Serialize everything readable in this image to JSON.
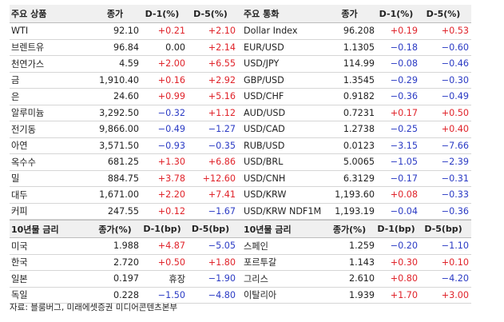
{
  "colors": {
    "up": "#e0242b",
    "down": "#2b3bc4",
    "neutral": "#222222"
  },
  "commodities": {
    "headers": [
      "주요 상품",
      "종가",
      "D-1(%)",
      "D-5(%)"
    ],
    "rows": [
      {
        "name": "WTI",
        "close": "92.10",
        "d1": "+0.21",
        "d1_dir": "pos",
        "d5": "+2.10",
        "d5_dir": "pos"
      },
      {
        "name": "브렌트유",
        "close": "96.84",
        "d1": "0.00",
        "d1_dir": "neu",
        "d5": "+2.14",
        "d5_dir": "pos"
      },
      {
        "name": "천연가스",
        "close": "4.59",
        "d1": "+2.00",
        "d1_dir": "pos",
        "d5": "+6.55",
        "d5_dir": "pos"
      },
      {
        "name": "금",
        "close": "1,910.40",
        "d1": "+0.16",
        "d1_dir": "pos",
        "d5": "+2.92",
        "d5_dir": "pos"
      },
      {
        "name": "은",
        "close": "24.60",
        "d1": "+0.99",
        "d1_dir": "pos",
        "d5": "+5.16",
        "d5_dir": "pos"
      },
      {
        "name": "알루미늄",
        "close": "3,292.50",
        "d1": "−0.32",
        "d1_dir": "neg",
        "d5": "+1.12",
        "d5_dir": "pos"
      },
      {
        "name": "전기동",
        "close": "9,866.00",
        "d1": "−0.49",
        "d1_dir": "neg",
        "d5": "−1.27",
        "d5_dir": "neg"
      },
      {
        "name": "아연",
        "close": "3,571.50",
        "d1": "−0.93",
        "d1_dir": "neg",
        "d5": "−0.35",
        "d5_dir": "neg"
      },
      {
        "name": "옥수수",
        "close": "681.25",
        "d1": "+1.30",
        "d1_dir": "pos",
        "d5": "+6.86",
        "d5_dir": "pos"
      },
      {
        "name": "밀",
        "close": "884.75",
        "d1": "+3.78",
        "d1_dir": "pos",
        "d5": "+12.60",
        "d5_dir": "pos"
      },
      {
        "name": "대두",
        "close": "1,671.00",
        "d1": "+2.20",
        "d1_dir": "pos",
        "d5": "+7.41",
        "d5_dir": "pos"
      },
      {
        "name": "커피",
        "close": "247.55",
        "d1": "+0.12",
        "d1_dir": "pos",
        "d5": "−1.67",
        "d5_dir": "neg"
      }
    ]
  },
  "currencies": {
    "headers": [
      "주요 통화",
      "종가",
      "D-1(%)",
      "D-5(%)"
    ],
    "rows": [
      {
        "name": "Dollar Index",
        "close": "96.208",
        "d1": "+0.19",
        "d1_dir": "pos",
        "d5": "+0.53",
        "d5_dir": "pos"
      },
      {
        "name": "EUR/USD",
        "close": "1.1305",
        "d1": "−0.18",
        "d1_dir": "neg",
        "d5": "−0.60",
        "d5_dir": "neg"
      },
      {
        "name": "USD/JPY",
        "close": "114.99",
        "d1": "−0.08",
        "d1_dir": "neg",
        "d5": "−0.46",
        "d5_dir": "neg"
      },
      {
        "name": "GBP/USD",
        "close": "1.3545",
        "d1": "−0.29",
        "d1_dir": "neg",
        "d5": "−0.30",
        "d5_dir": "neg"
      },
      {
        "name": "USD/CHF",
        "close": "0.9182",
        "d1": "−0.36",
        "d1_dir": "neg",
        "d5": "−0.49",
        "d5_dir": "neg"
      },
      {
        "name": "AUD/USD",
        "close": "0.7231",
        "d1": "+0.17",
        "d1_dir": "pos",
        "d5": "+0.50",
        "d5_dir": "pos"
      },
      {
        "name": "USD/CAD",
        "close": "1.2738",
        "d1": "−0.25",
        "d1_dir": "neg",
        "d5": "+0.40",
        "d5_dir": "pos"
      },
      {
        "name": "RUB/USD",
        "close": "0.0123",
        "d1": "−3.15",
        "d1_dir": "neg",
        "d5": "−7.66",
        "d5_dir": "neg"
      },
      {
        "name": "USD/BRL",
        "close": "5.0065",
        "d1": "−1.05",
        "d1_dir": "neg",
        "d5": "−2.39",
        "d5_dir": "neg"
      },
      {
        "name": "USD/CNH",
        "close": "6.3129",
        "d1": "−0.17",
        "d1_dir": "neg",
        "d5": "−0.31",
        "d5_dir": "neg"
      },
      {
        "name": "USD/KRW",
        "close": "1,193.60",
        "d1": "+0.08",
        "d1_dir": "pos",
        "d5": "−0.33",
        "d5_dir": "neg"
      },
      {
        "name": "USD/KRW NDF1M",
        "close": "1,193.19",
        "d1": "−0.04",
        "d1_dir": "neg",
        "d5": "−0.36",
        "d5_dir": "neg"
      }
    ]
  },
  "bonds_left": {
    "headers": [
      "10년물 금리",
      "종가(%)",
      "D-1(bp)",
      "D-5(bp)"
    ],
    "rows": [
      {
        "name": "미국",
        "close": "1.988",
        "d1": "+4.87",
        "d1_dir": "pos",
        "d5": "−5.05",
        "d5_dir": "neg"
      },
      {
        "name": "한국",
        "close": "2.720",
        "d1": "+0.50",
        "d1_dir": "pos",
        "d5": "+1.80",
        "d5_dir": "pos"
      },
      {
        "name": "일본",
        "close": "0.197",
        "d1": "휴장",
        "d1_dir": "neu",
        "d5": "−1.90",
        "d5_dir": "neg"
      },
      {
        "name": "독일",
        "close": "0.228",
        "d1": "−1.50",
        "d1_dir": "neg",
        "d5": "−4.80",
        "d5_dir": "neg"
      }
    ]
  },
  "bonds_right": {
    "headers": [
      "10년물 금리",
      "종가(%)",
      "D-1(bp)",
      "D-5(bp)"
    ],
    "rows": [
      {
        "name": "스페인",
        "close": "1.259",
        "d1": "−0.20",
        "d1_dir": "neg",
        "d5": "−1.10",
        "d5_dir": "neg"
      },
      {
        "name": "포르투갈",
        "close": "1.143",
        "d1": "+0.30",
        "d1_dir": "pos",
        "d5": "+0.10",
        "d5_dir": "pos"
      },
      {
        "name": "그리스",
        "close": "2.610",
        "d1": "+0.80",
        "d1_dir": "pos",
        "d5": "−4.20",
        "d5_dir": "neg"
      },
      {
        "name": "이탈리아",
        "close": "1.939",
        "d1": "+1.70",
        "d1_dir": "pos",
        "d5": "+3.00",
        "d5_dir": "pos"
      }
    ]
  },
  "source": "자료: 블룸버그, 미래에셋증권 미디어콘텐츠본부"
}
